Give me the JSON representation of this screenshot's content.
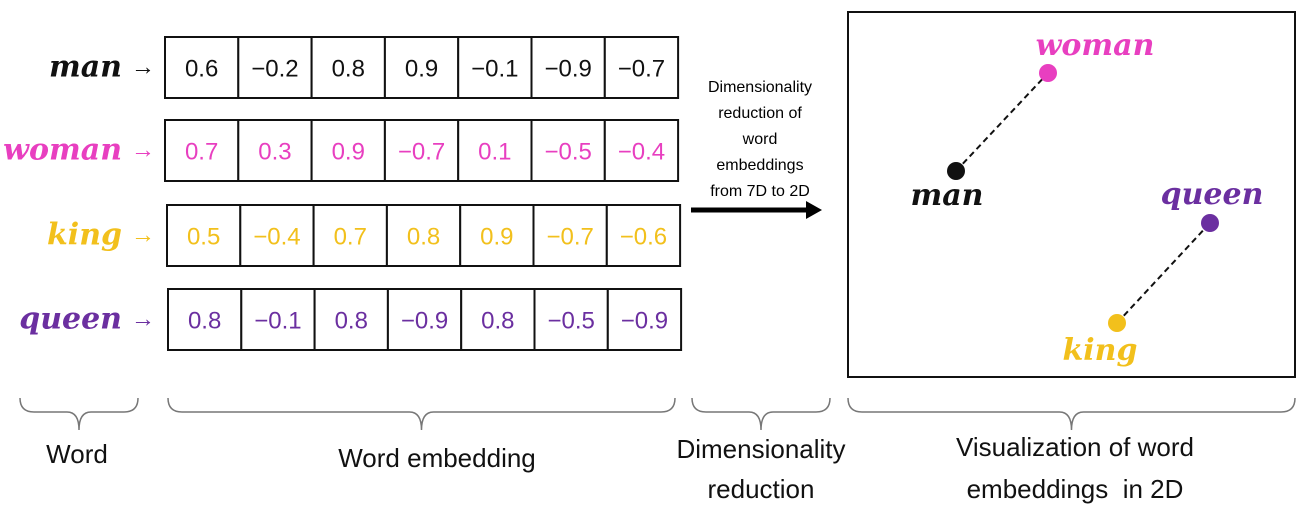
{
  "colors": {
    "man": "#111111",
    "woman": "#e83fc0",
    "king": "#f2c01c",
    "queen": "#6b2fa0"
  },
  "rows": [
    {
      "word": "man",
      "arrow": "→",
      "values": [
        "0.6",
        "−0.2",
        "0.8",
        "0.9",
        "−0.1",
        "−0.9",
        "−0.7"
      ],
      "color_key": "man"
    },
    {
      "word": "woman",
      "arrow": "→",
      "values": [
        "0.7",
        "0.3",
        "0.9",
        "−0.7",
        "0.1",
        "−0.5",
        "−0.4"
      ],
      "color_key": "woman"
    },
    {
      "word": "king",
      "arrow": "→",
      "values": [
        "0.5",
        "−0.4",
        "0.7",
        "0.8",
        "0.9",
        "−0.7",
        "−0.6"
      ],
      "color_key": "king"
    },
    {
      "word": "queen",
      "arrow": "→",
      "values": [
        "0.8",
        "−0.1",
        "0.8",
        "−0.9",
        "0.8",
        "−0.5",
        "−0.9"
      ],
      "color_key": "queen"
    }
  ],
  "reduction_text": [
    "Dimensionality",
    "reduction of",
    "word",
    "embeddings",
    "from 7D to 2D"
  ],
  "plot": {
    "points": [
      {
        "label": "woman",
        "color_key": "woman"
      },
      {
        "label": "man",
        "color_key": "man"
      },
      {
        "label": "queen",
        "color_key": "queen"
      },
      {
        "label": "king",
        "color_key": "king"
      }
    ],
    "links": [
      [
        "man",
        "woman"
      ],
      [
        "king",
        "queen"
      ]
    ]
  },
  "captions": {
    "word": [
      "Word"
    ],
    "embedding": [
      "Word embedding"
    ],
    "reduction": [
      "Dimensionality",
      "reduction"
    ],
    "visualization": [
      "Visualization of word",
      "embeddings  in 2D"
    ]
  }
}
